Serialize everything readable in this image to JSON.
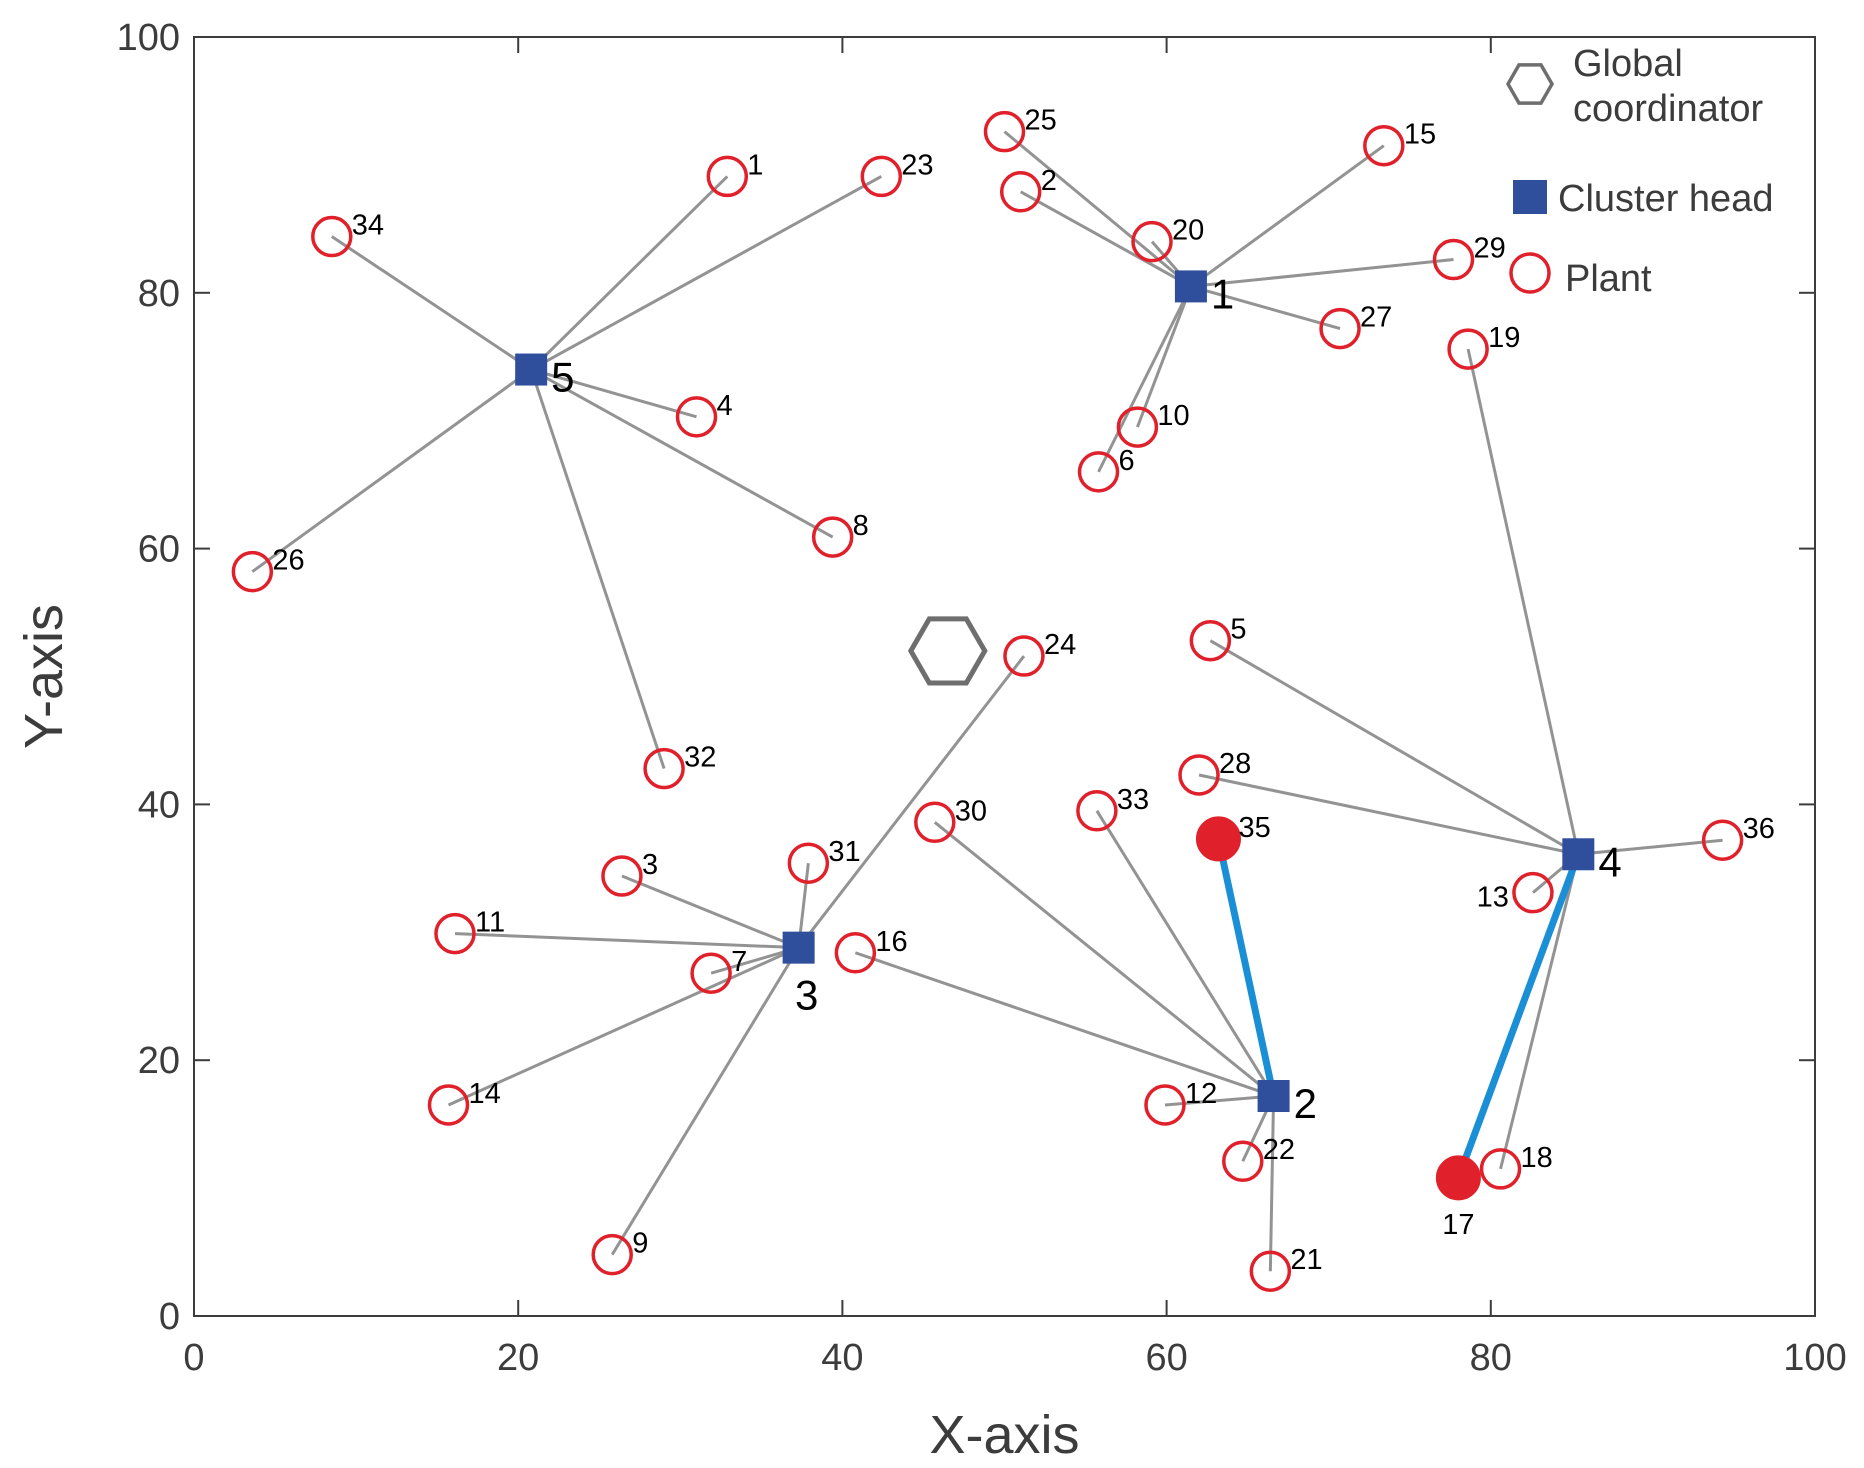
{
  "chart_data": {
    "type": "scatter",
    "title": "",
    "xlabel": "X-axis",
    "ylabel": "Y-axis",
    "xlim": [
      0,
      100
    ],
    "ylim": [
      0,
      100
    ],
    "xticks": [
      "0",
      "20",
      "40",
      "60",
      "80",
      "100"
    ],
    "yticks": [
      "0",
      "20",
      "40",
      "60",
      "80",
      "100"
    ],
    "xtick_values": [
      0,
      20,
      40,
      60,
      80,
      100
    ],
    "ytick_values": [
      0,
      20,
      40,
      60,
      80,
      100
    ],
    "grid": false,
    "legend_position": "top-right",
    "legend": [
      {
        "label": "Global\ncoordinator",
        "marker": "hexagon"
      },
      {
        "label": "Cluster head",
        "marker": "filled-square"
      },
      {
        "label": "Plant",
        "marker": "open-circle"
      }
    ],
    "global_coordinator": {
      "x": 46.5,
      "y": 52.0
    },
    "cluster_heads": [
      {
        "id": "1",
        "x": 61.5,
        "y": 80.5
      },
      {
        "id": "2",
        "x": 66.6,
        "y": 17.2
      },
      {
        "id": "3",
        "x": 37.3,
        "y": 28.8
      },
      {
        "id": "4",
        "x": 85.4,
        "y": 36.1
      },
      {
        "id": "5",
        "x": 20.8,
        "y": 74.0
      }
    ],
    "plants": [
      {
        "id": "1",
        "x": 32.9,
        "y": 89.1,
        "head": "5"
      },
      {
        "id": "2",
        "x": 51.0,
        "y": 87.9,
        "head": "1"
      },
      {
        "id": "3",
        "x": 26.4,
        "y": 34.4,
        "head": "3"
      },
      {
        "id": "4",
        "x": 31.0,
        "y": 70.3,
        "head": "5"
      },
      {
        "id": "5",
        "x": 62.7,
        "y": 52.8,
        "head": "4"
      },
      {
        "id": "6",
        "x": 55.8,
        "y": 66.0,
        "head": "1"
      },
      {
        "id": "7",
        "x": 31.9,
        "y": 26.8,
        "head": "3"
      },
      {
        "id": "8",
        "x": 39.4,
        "y": 60.9,
        "head": "5"
      },
      {
        "id": "9",
        "x": 25.8,
        "y": 4.8,
        "head": "3"
      },
      {
        "id": "10",
        "x": 58.2,
        "y": 69.5,
        "head": "1"
      },
      {
        "id": "11",
        "x": 16.1,
        "y": 29.9,
        "head": "3"
      },
      {
        "id": "12",
        "x": 59.9,
        "y": 16.5,
        "head": "2"
      },
      {
        "id": "13",
        "x": 82.6,
        "y": 33.1,
        "head": "4"
      },
      {
        "id": "14",
        "x": 15.7,
        "y": 16.5,
        "head": "3"
      },
      {
        "id": "15",
        "x": 73.4,
        "y": 91.5,
        "head": "1"
      },
      {
        "id": "16",
        "x": 40.8,
        "y": 28.4,
        "head": "2"
      },
      {
        "id": "17",
        "x": 78.0,
        "y": 10.8,
        "head": "4",
        "highlight": true
      },
      {
        "id": "18",
        "x": 80.6,
        "y": 11.5,
        "head": "4"
      },
      {
        "id": "19",
        "x": 78.6,
        "y": 75.6,
        "head": "4"
      },
      {
        "id": "20",
        "x": 59.1,
        "y": 84.0,
        "head": "1"
      },
      {
        "id": "21",
        "x": 66.4,
        "y": 3.5,
        "head": "2"
      },
      {
        "id": "22",
        "x": 64.7,
        "y": 12.1,
        "head": "2"
      },
      {
        "id": "23",
        "x": 42.4,
        "y": 89.1,
        "head": "5"
      },
      {
        "id": "24",
        "x": 51.2,
        "y": 51.6,
        "head": "3"
      },
      {
        "id": "25",
        "x": 50.0,
        "y": 92.6,
        "head": "1"
      },
      {
        "id": "26",
        "x": 3.6,
        "y": 58.2,
        "head": "5"
      },
      {
        "id": "27",
        "x": 70.7,
        "y": 77.2,
        "head": "1"
      },
      {
        "id": "28",
        "x": 62.0,
        "y": 42.3,
        "head": "4"
      },
      {
        "id": "29",
        "x": 77.7,
        "y": 82.6,
        "head": "1"
      },
      {
        "id": "30",
        "x": 45.7,
        "y": 38.6,
        "head": "2"
      },
      {
        "id": "31",
        "x": 37.9,
        "y": 35.4,
        "head": "3"
      },
      {
        "id": "32",
        "x": 29.0,
        "y": 42.8,
        "head": "5"
      },
      {
        "id": "33",
        "x": 55.7,
        "y": 39.5,
        "head": "2"
      },
      {
        "id": "34",
        "x": 8.5,
        "y": 84.4,
        "head": "5"
      },
      {
        "id": "35",
        "x": 63.2,
        "y": 37.3,
        "head": "2",
        "highlight": true
      },
      {
        "id": "36",
        "x": 94.3,
        "y": 37.2,
        "head": "4"
      }
    ],
    "colors": {
      "axis": "#3c3c3c",
      "link": "#939393",
      "highlight_link": "#1a8fd6",
      "plant": "#e0202a",
      "cluster_head": "#2f4f9c",
      "coordinator": "#6e6e6e"
    }
  }
}
